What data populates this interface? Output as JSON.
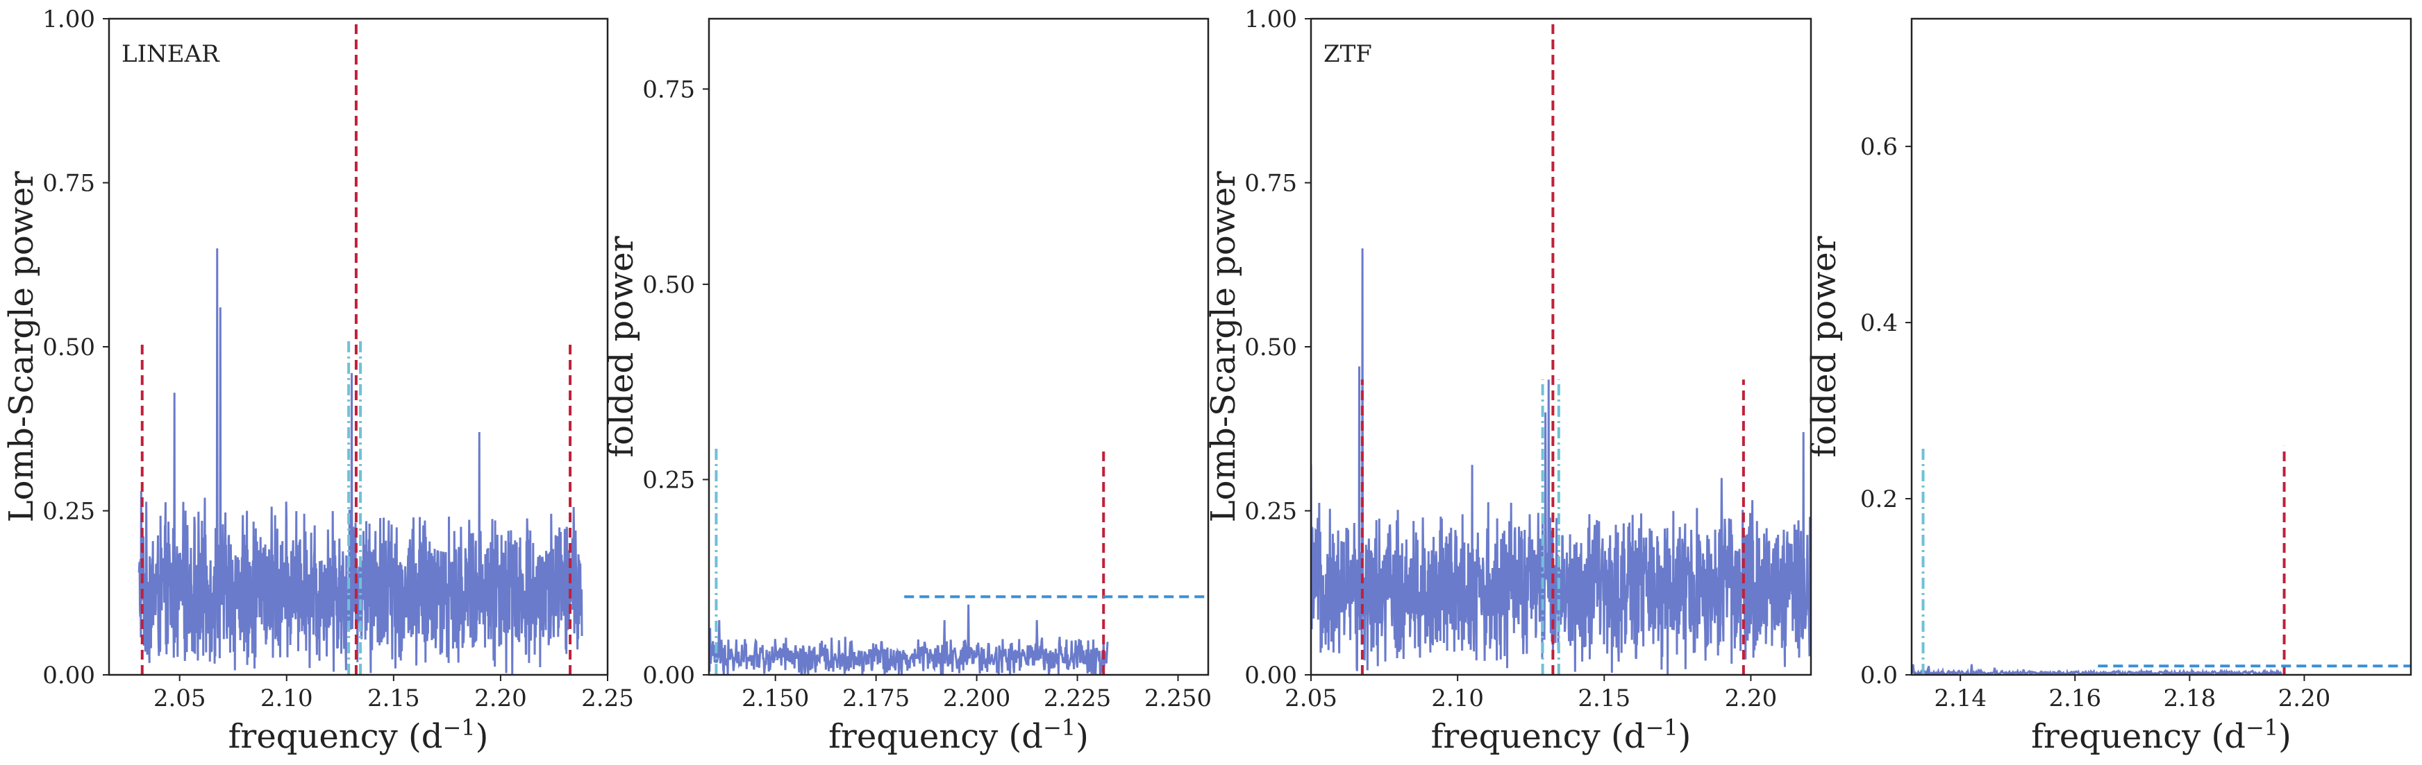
{
  "chart_data": [
    {
      "type": "line",
      "annotation": "LINEAR",
      "xlabel": "frequency (d$^{-1}$)",
      "xlabel_main": "frequency (d",
      "xlabel_sup": "−1",
      "xlabel_close": ")",
      "ylabel": "Lomb-Scargle power",
      "xlim": [
        2.017,
        2.25
      ],
      "ylim": [
        0.0,
        1.0
      ],
      "xticks": [
        2.05,
        2.1,
        2.15,
        2.2,
        2.25
      ],
      "xtick_labels": [
        "2.05",
        "2.10",
        "2.15",
        "2.20",
        "2.25"
      ],
      "yticks": [
        0.0,
        0.25,
        0.5,
        0.75,
        1.0
      ],
      "ytick_labels": [
        "0.00",
        "0.25",
        "0.50",
        "0.75",
        "1.00"
      ],
      "series": [
        {
          "color": "#6a7bcb",
          "x_range": [
            2.031,
            2.238
          ],
          "n_points": 1400,
          "noise_baseline": 0.13,
          "noise_amplitude": 0.1,
          "peaks": [
            [
              2.0675,
              0.65
            ],
            [
              2.069,
              0.56
            ],
            [
              2.0475,
              0.43
            ],
            [
              2.1305,
              0.46
            ],
            [
              2.032,
              0.28
            ],
            [
              2.19,
              0.37
            ],
            [
              2.235,
              0.22
            ]
          ]
        }
      ],
      "vlines": [
        {
          "x": 2.0325,
          "y": [
            0.0,
            0.51
          ],
          "color": "#c0203a",
          "style": "dashed"
        },
        {
          "x": 2.1325,
          "y": [
            0.0,
            1.0
          ],
          "color": "#c0203a",
          "style": "dashed"
        },
        {
          "x": 2.2325,
          "y": [
            0.0,
            0.51
          ],
          "color": "#c0203a",
          "style": "dashed"
        },
        {
          "x": 2.129,
          "y": [
            0.0,
            0.51
          ],
          "color": "#6fc1d6",
          "style": "dashdot"
        },
        {
          "x": 2.1345,
          "y": [
            0.0,
            0.51
          ],
          "color": "#6fc1d6",
          "style": "dashdot"
        }
      ],
      "hlines": []
    },
    {
      "type": "line",
      "annotation": "",
      "xlabel": "frequency (d$^{-1}$)",
      "xlabel_main": "frequency (d",
      "xlabel_sup": "−1",
      "xlabel_close": ")",
      "ylabel": "folded power",
      "xlim": [
        2.1335,
        2.2575
      ],
      "ylim": [
        0.0,
        0.84
      ],
      "xticks": [
        2.15,
        2.175,
        2.2,
        2.225,
        2.25
      ],
      "xtick_labels": [
        "2.150",
        "2.175",
        "2.200",
        "2.225",
        "2.250"
      ],
      "yticks": [
        0.0,
        0.25,
        0.5,
        0.75
      ],
      "ytick_labels": [
        "0.00",
        "0.25",
        "0.50",
        "0.75"
      ],
      "series": [
        {
          "color": "#6a7bcb",
          "x_range": [
            2.1335,
            2.2325
          ],
          "n_points": 700,
          "noise_baseline": 0.022,
          "noise_amplitude": 0.02,
          "peaks": [
            [
              2.1338,
              0.06
            ],
            [
              2.136,
              0.07
            ],
            [
              2.198,
              0.09
            ],
            [
              2.192,
              0.07
            ],
            [
              2.215,
              0.07
            ],
            [
              2.2315,
              0.04
            ]
          ]
        }
      ],
      "vlines": [
        {
          "x": 2.2315,
          "y": [
            0.0,
            0.29
          ],
          "color": "#c0203a",
          "style": "dashed"
        },
        {
          "x": 2.1353,
          "y": [
            0.0,
            0.29
          ],
          "color": "#6fc1d6",
          "style": "dashdot"
        }
      ],
      "hlines": [
        {
          "y": 0.1,
          "x": [
            2.182,
            2.2575
          ],
          "color": "#3a8fd6",
          "style": "dashed"
        }
      ]
    },
    {
      "type": "line",
      "annotation": "ZTF",
      "xlabel": "frequency (d$^{-1}$)",
      "xlabel_main": "frequency (d",
      "xlabel_sup": "−1",
      "xlabel_close": ")",
      "ylabel": "Lomb-Scargle power",
      "xlim": [
        2.05,
        2.2205
      ],
      "ylim": [
        0.0,
        1.0
      ],
      "xticks": [
        2.05,
        2.1,
        2.15,
        2.2
      ],
      "xtick_labels": [
        "2.05",
        "2.10",
        "2.15",
        "2.20"
      ],
      "yticks": [
        0.0,
        0.25,
        0.5,
        0.75,
        1.0
      ],
      "ytick_labels": [
        "0.00",
        "0.25",
        "0.50",
        "0.75",
        "1.00"
      ],
      "series": [
        {
          "color": "#6a7bcb",
          "x_range": [
            2.05,
            2.2205
          ],
          "n_points": 1400,
          "noise_baseline": 0.13,
          "noise_amplitude": 0.1,
          "peaks": [
            [
              2.0675,
              0.65
            ],
            [
              2.0665,
              0.47
            ],
            [
              2.131,
              0.45
            ],
            [
              2.13,
              0.4
            ],
            [
              2.05,
              0.32
            ],
            [
              2.218,
              0.37
            ],
            [
              2.19,
              0.3
            ],
            [
              2.105,
              0.32
            ]
          ]
        }
      ],
      "vlines": [
        {
          "x": 2.0675,
          "y": [
            0.0,
            0.45
          ],
          "color": "#c0203a",
          "style": "dashed"
        },
        {
          "x": 2.1325,
          "y": [
            0.0,
            1.0
          ],
          "color": "#c0203a",
          "style": "dashed"
        },
        {
          "x": 2.1975,
          "y": [
            0.0,
            0.45
          ],
          "color": "#c0203a",
          "style": "dashed"
        },
        {
          "x": 2.129,
          "y": [
            0.0,
            0.45
          ],
          "color": "#6fc1d6",
          "style": "dashdot"
        },
        {
          "x": 2.1345,
          "y": [
            0.0,
            0.45
          ],
          "color": "#6fc1d6",
          "style": "dashdot"
        }
      ],
      "hlines": []
    },
    {
      "type": "line",
      "annotation": "",
      "xlabel": "frequency (d$^{-1}$)",
      "xlabel_main": "frequency (d",
      "xlabel_sup": "−1",
      "xlabel_close": ")",
      "ylabel": "folded power",
      "xlim": [
        2.1315,
        2.2186
      ],
      "ylim": [
        0.0,
        0.745
      ],
      "xticks": [
        2.14,
        2.16,
        2.18,
        2.2
      ],
      "xtick_labels": [
        "2.14",
        "2.16",
        "2.18",
        "2.20"
      ],
      "yticks": [
        0.0,
        0.2,
        0.4,
        0.6
      ],
      "ytick_labels": [
        "0.0",
        "0.2",
        "0.4",
        "0.6"
      ],
      "series": [
        {
          "color": "#6a7bcb",
          "x_range": [
            2.1315,
            2.196
          ],
          "n_points": 500,
          "noise_baseline": 0.002,
          "noise_amplitude": 0.002,
          "peaks": [
            [
              2.1318,
              0.012
            ],
            [
              2.1345,
              0.01
            ],
            [
              2.142,
              0.012
            ],
            [
              2.146,
              0.008
            ],
            [
              2.151,
              0.006
            ]
          ]
        }
      ],
      "vlines": [
        {
          "x": 2.1965,
          "y": [
            0.0,
            0.26
          ],
          "color": "#c0203a",
          "style": "dashed"
        },
        {
          "x": 2.1335,
          "y": [
            0.0,
            0.26
          ],
          "color": "#6fc1d6",
          "style": "dashdot"
        }
      ],
      "hlines": [
        {
          "y": 0.01,
          "x": [
            2.164,
            2.2186
          ],
          "color": "#3a8fd6",
          "style": "dashed"
        }
      ]
    }
  ]
}
